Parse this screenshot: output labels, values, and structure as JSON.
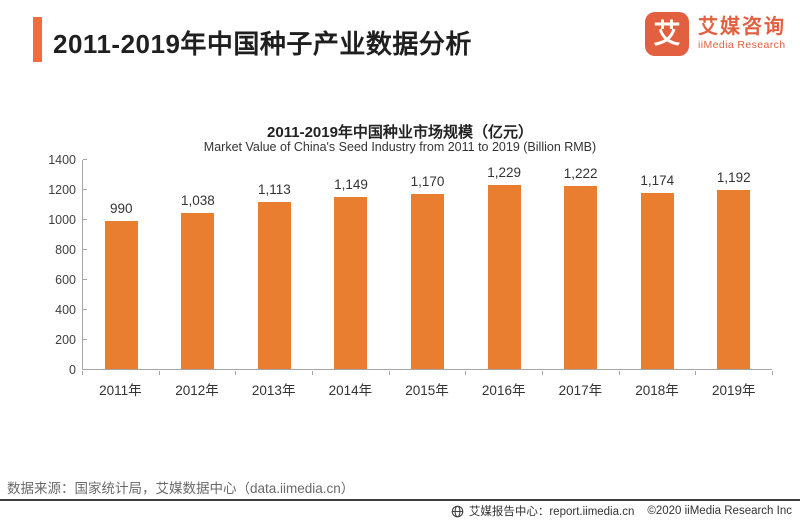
{
  "header": {
    "title": "2011-2019年中国种子产业数据分析",
    "logo": {
      "symbol": "艾",
      "name_cn": "艾媒咨询",
      "name_en": "iiMedia Research"
    }
  },
  "chart_data": {
    "type": "bar",
    "title": "2011-2019年中国种业市场规模（亿元）",
    "subtitle": "Market Value of China's Seed Industry from 2011 to 2019 (Billion RMB)",
    "categories": [
      "2011年",
      "2012年",
      "2013年",
      "2014年",
      "2015年",
      "2016年",
      "2017年",
      "2018年",
      "2019年"
    ],
    "values": [
      990,
      1038,
      1113,
      1149,
      1170,
      1229,
      1222,
      1174,
      1192
    ],
    "value_labels": [
      "990",
      "1,038",
      "1,113",
      "1,149",
      "1,170",
      "1,229",
      "1,222",
      "1,174",
      "1,192"
    ],
    "y_ticks": [
      0,
      200,
      400,
      600,
      800,
      1000,
      1200,
      1400
    ],
    "ylim": [
      0,
      1400
    ],
    "xlabel": "",
    "ylabel": "",
    "grid": false,
    "legend_position": "none",
    "bar_color": "#E97E31"
  },
  "footer": {
    "source": "数据来源：国家统计局，艾媒数据中心（data.iimedia.cn）"
  },
  "bottom_bar": {
    "report_center": "艾媒报告中心：report.iimedia.cn",
    "copyright": "©2020  iiMedia Research Inc"
  },
  "colors": {
    "accent": "#F56A3F",
    "bar": "#E97E31",
    "logo": "#E2603F",
    "axis": "#a6a6a6",
    "divider": "#3f3f3f"
  }
}
